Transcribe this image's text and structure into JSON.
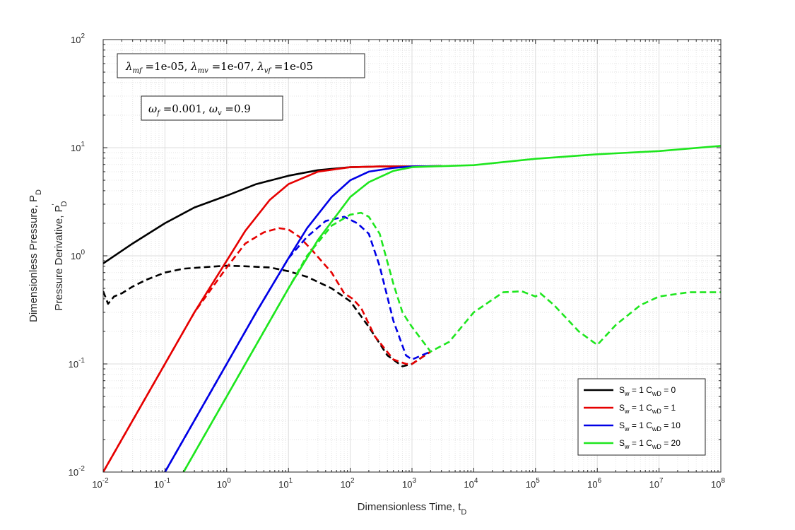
{
  "chart_data": {
    "type": "line",
    "xscale": "log",
    "yscale": "log",
    "xlim": [
      0.01,
      100000000
    ],
    "ylim": [
      0.01,
      100
    ],
    "grid": true,
    "minor_grid": true,
    "legend_position": "bottom-right",
    "xlabel": {
      "main": "Dimensionless Time, t",
      "sub": "D"
    },
    "ylabel": {
      "line1_main": "Dimensionless Pressure, P",
      "line1_sub": "D",
      "line2_main": "Pressure Derivative, P",
      "line2_sup": "'",
      "line2_sub": "D"
    },
    "x_ticks": [
      {
        "value": 0.01,
        "base": "10",
        "exp": "-2"
      },
      {
        "value": 0.1,
        "base": "10",
        "exp": "-1"
      },
      {
        "value": 1,
        "base": "10",
        "exp": "0"
      },
      {
        "value": 10,
        "base": "10",
        "exp": "1"
      },
      {
        "value": 100,
        "base": "10",
        "exp": "2"
      },
      {
        "value": 1000,
        "base": "10",
        "exp": "3"
      },
      {
        "value": 10000,
        "base": "10",
        "exp": "4"
      },
      {
        "value": 100000,
        "base": "10",
        "exp": "5"
      },
      {
        "value": 1000000,
        "base": "10",
        "exp": "6"
      },
      {
        "value": 10000000,
        "base": "10",
        "exp": "7"
      },
      {
        "value": 100000000,
        "base": "10",
        "exp": "8"
      }
    ],
    "y_ticks": [
      {
        "value": 0.01,
        "base": "10",
        "exp": "-2"
      },
      {
        "value": 0.1,
        "base": "10",
        "exp": "-1"
      },
      {
        "value": 1,
        "base": "10",
        "exp": "0"
      },
      {
        "value": 10,
        "base": "10",
        "exp": "1"
      },
      {
        "value": 100,
        "base": "10",
        "exp": "2"
      }
    ],
    "annotations": [
      {
        "text": "λmf =1e-05, λmv =1e-07, λvf =1e-05"
      },
      {
        "text": "ωf =0.001, ωv =0.9"
      }
    ],
    "series": [
      {
        "name": "Sw = 1  CwD = 0",
        "color": "#000000",
        "pressure": {
          "x": [
            0.01,
            0.03,
            0.1,
            0.3,
            1,
            3,
            10,
            30,
            100,
            300,
            1000,
            3000
          ],
          "y": [
            0.85,
            1.3,
            2.0,
            2.8,
            3.6,
            4.6,
            5.5,
            6.2,
            6.6,
            6.7,
            6.7,
            6.75
          ]
        },
        "derivative": {
          "x": [
            0.01,
            0.012,
            0.015,
            0.02,
            0.03,
            0.05,
            0.1,
            0.2,
            0.5,
            1,
            2,
            5,
            10,
            20,
            50,
            100,
            200,
            400,
            700,
            1000,
            2000
          ],
          "y": [
            0.47,
            0.36,
            0.42,
            0.45,
            0.52,
            0.6,
            0.7,
            0.76,
            0.79,
            0.81,
            0.8,
            0.78,
            0.72,
            0.64,
            0.5,
            0.38,
            0.22,
            0.12,
            0.095,
            0.1,
            0.13
          ]
        }
      },
      {
        "name": "Sw = 1  CwD = 1",
        "color": "#e60000",
        "pressure": {
          "x": [
            0.01,
            0.1,
            0.3,
            1,
            2,
            5,
            10,
            30,
            100,
            300,
            1000,
            3000
          ],
          "y": [
            0.01,
            0.1,
            0.3,
            0.9,
            1.7,
            3.3,
            4.6,
            6.0,
            6.6,
            6.7,
            6.7,
            6.75
          ]
        },
        "derivative": {
          "x": [
            0.01,
            0.1,
            0.3,
            1,
            2,
            4,
            7,
            10,
            15,
            25,
            50,
            80,
            110,
            150,
            250,
            500,
            800,
            1000,
            2000
          ],
          "y": [
            0.01,
            0.1,
            0.3,
            0.78,
            1.3,
            1.65,
            1.8,
            1.75,
            1.5,
            1.1,
            0.7,
            0.45,
            0.4,
            0.33,
            0.18,
            0.11,
            0.1,
            0.1,
            0.13
          ]
        }
      },
      {
        "name": "Sw = 1  CwD = 10",
        "color": "#0000e6",
        "pressure": {
          "x": [
            0.1,
            0.3,
            1,
            3,
            10,
            20,
            50,
            100,
            200,
            500,
            1000,
            3000
          ],
          "y": [
            0.01,
            0.03,
            0.1,
            0.3,
            0.95,
            1.8,
            3.5,
            5.0,
            6.0,
            6.5,
            6.7,
            6.75
          ]
        },
        "derivative": {
          "x": [
            0.1,
            1,
            3,
            10,
            20,
            40,
            80,
            130,
            200,
            300,
            500,
            800,
            1000,
            2000
          ],
          "y": [
            0.01,
            0.1,
            0.3,
            0.95,
            1.5,
            2.1,
            2.3,
            2.0,
            1.6,
            0.8,
            0.25,
            0.12,
            0.11,
            0.13
          ]
        }
      },
      {
        "name": "Sw = 1  CwD = 20",
        "color": "#1ee61e",
        "pressure": {
          "x": [
            0.2,
            0.5,
            1,
            3,
            10,
            30,
            100,
            200,
            500,
            1000,
            2000,
            10000,
            100000,
            1000000,
            10000000,
            100000000
          ],
          "y": [
            0.01,
            0.025,
            0.05,
            0.15,
            0.5,
            1.4,
            3.5,
            4.8,
            6.1,
            6.6,
            6.7,
            6.9,
            7.9,
            8.7,
            9.3,
            10.4
          ]
        },
        "derivative": {
          "x": [
            0.2,
            2,
            20,
            50,
            100,
            150,
            200,
            300,
            500,
            700,
            900,
            1000,
            2000,
            4000,
            10000,
            30000,
            60000,
            100000,
            120000,
            200000,
            500000,
            1000000,
            2000000,
            5000000,
            10000000,
            30000000,
            100000000
          ],
          "y": [
            0.01,
            0.1,
            1.0,
            1.9,
            2.4,
            2.5,
            2.3,
            1.6,
            0.55,
            0.3,
            0.24,
            0.22,
            0.13,
            0.16,
            0.3,
            0.46,
            0.47,
            0.42,
            0.45,
            0.35,
            0.2,
            0.15,
            0.23,
            0.35,
            0.42,
            0.46,
            0.46
          ]
        }
      }
    ]
  },
  "legend": {
    "items": [
      {
        "s_main": "S",
        "s_sub": "w",
        "mid": " = 1  C",
        "c_sub": "wD",
        "val": " = 0",
        "color": "#000000"
      },
      {
        "s_main": "S",
        "s_sub": "w",
        "mid": " = 1  C",
        "c_sub": "wD",
        "val": " = 1",
        "color": "#e60000"
      },
      {
        "s_main": "S",
        "s_sub": "w",
        "mid": " = 1  C",
        "c_sub": "wD",
        "val": " = 10",
        "color": "#0000e6"
      },
      {
        "s_main": "S",
        "s_sub": "w",
        "mid": " = 1  C",
        "c_sub": "wD",
        "val": " = 20",
        "color": "#1ee61e"
      }
    ]
  },
  "annotation_parts": {
    "box1": [
      {
        "t": "λ",
        "sub": "mf"
      },
      {
        "t": " =1e-05, "
      },
      {
        "t": "λ",
        "sub": "mv"
      },
      {
        "t": " =1e-07, "
      },
      {
        "t": "λ",
        "sub": "vf"
      },
      {
        "t": " =1e-05"
      }
    ],
    "box2": [
      {
        "t": "ω",
        "sub": "f"
      },
      {
        "t": " =0.001, "
      },
      {
        "t": "ω",
        "sub": "v"
      },
      {
        "t": " =0.9"
      }
    ]
  }
}
